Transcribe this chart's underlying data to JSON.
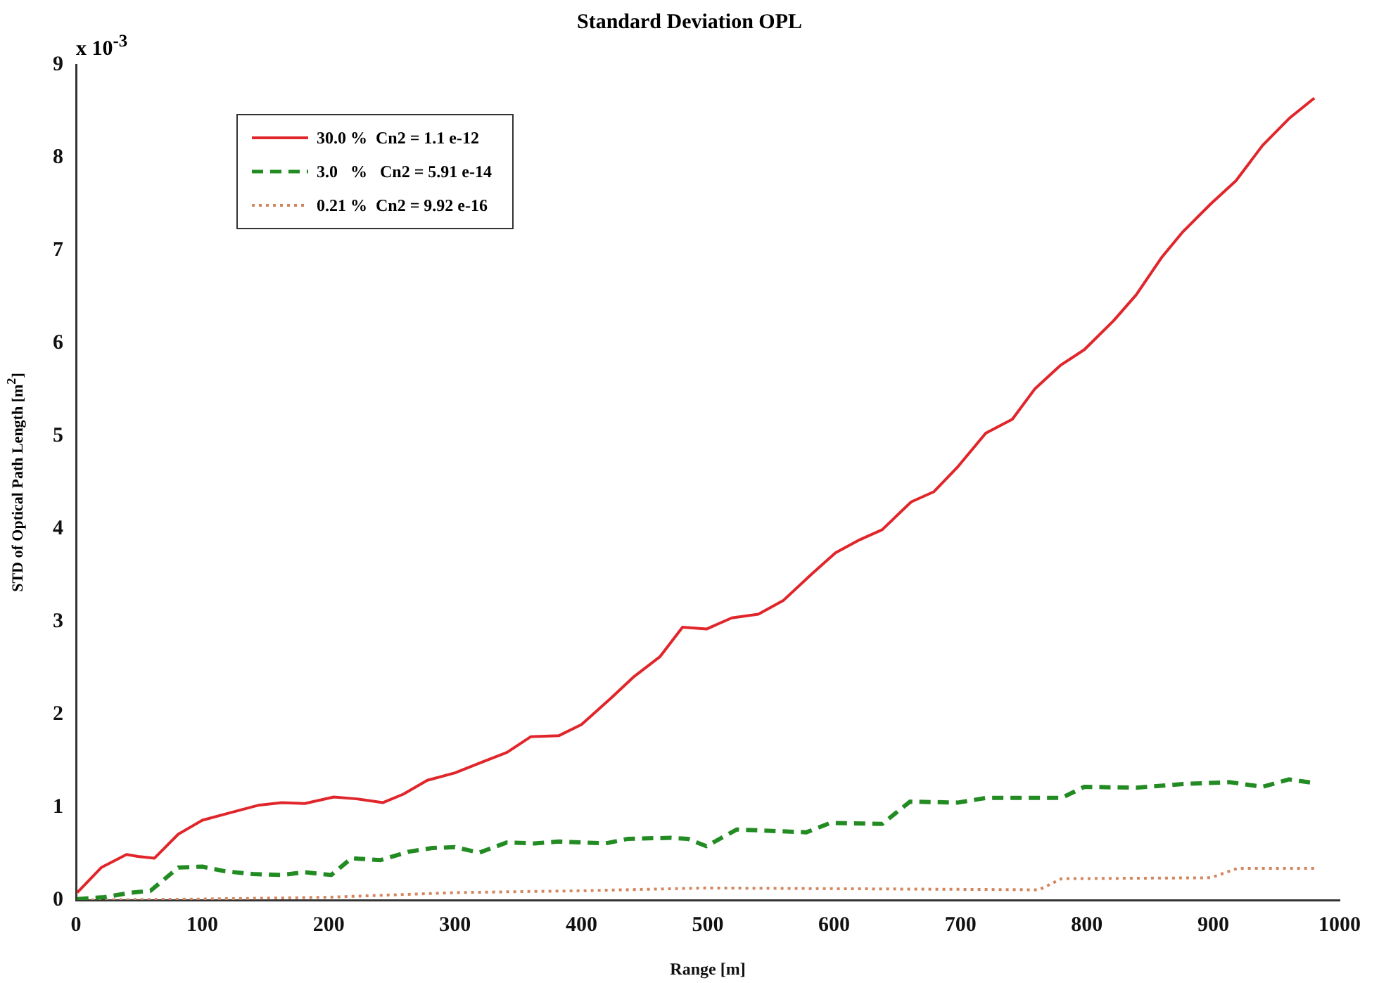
{
  "chart_data": {
    "type": "line",
    "title": "Standard Deviation OPL",
    "xlabel": "Range [m]",
    "ylabel": "STD of Optical Path Length [m$^{2}$]",
    "annotations": [
      "x 10$^{-3}$"
    ],
    "xlim": [
      0,
      1000
    ],
    "xticks": [
      0,
      100,
      200,
      300,
      400,
      500,
      600,
      700,
      800,
      900,
      1000
    ],
    "ylim": [
      0,
      9
    ],
    "yticks": [
      0,
      1,
      2,
      3,
      4,
      5,
      6,
      7,
      8,
      9
    ],
    "grid": false,
    "legend": "top left",
    "marker": "none",
    "series": [
      {
        "name": "30.0 %  Cn2 = 1.1 e-12",
        "color": "#e0262b",
        "line_style": "solid",
        "x": [
          1,
          20,
          40,
          49,
          62,
          81,
          100,
          122,
          144,
          163,
          181,
          204,
          222,
          243,
          259,
          278,
          300,
          322,
          341,
          360,
          382,
          400,
          423,
          441,
          462,
          480,
          499,
          519,
          540,
          560,
          582,
          601,
          620,
          638,
          661,
          679,
          698,
          720,
          741,
          759,
          779,
          798,
          821,
          839,
          859,
          876,
          898,
          918,
          939,
          960,
          980
        ],
        "values": [
          0.08,
          0.35,
          0.49,
          0.47,
          0.45,
          0.71,
          0.86,
          0.94,
          1.02,
          1.05,
          1.04,
          1.11,
          1.09,
          1.05,
          1.14,
          1.29,
          1.37,
          1.49,
          1.59,
          1.76,
          1.77,
          1.89,
          2.17,
          2.4,
          2.62,
          2.94,
          2.92,
          3.04,
          3.08,
          3.23,
          3.51,
          3.74,
          3.88,
          3.99,
          4.29,
          4.4,
          4.67,
          5.03,
          5.18,
          5.51,
          5.76,
          5.93,
          6.24,
          6.52,
          6.92,
          7.2,
          7.5,
          7.75,
          8.13,
          8.42,
          8.64
        ]
      },
      {
        "name": "3.0   %   Cn2 = 5.91 e-14",
        "color": "#228b22",
        "line_style": "dashed",
        "x": [
          1,
          22,
          44,
          59,
          81,
          100,
          118,
          140,
          163,
          181,
          202,
          218,
          241,
          263,
          282,
          300,
          319,
          341,
          363,
          382,
          419,
          437,
          471,
          484,
          499,
          523,
          578,
          597,
          638,
          660,
          698,
          720,
          780,
          798,
          839,
          876,
          913,
          939,
          960,
          980
        ],
        "values": [
          0.01,
          0.03,
          0.08,
          0.1,
          0.35,
          0.36,
          0.31,
          0.28,
          0.27,
          0.3,
          0.27,
          0.45,
          0.43,
          0.52,
          0.56,
          0.57,
          0.51,
          0.62,
          0.61,
          0.63,
          0.61,
          0.66,
          0.67,
          0.66,
          0.58,
          0.76,
          0.73,
          0.83,
          0.82,
          1.06,
          1.05,
          1.1,
          1.1,
          1.22,
          1.21,
          1.25,
          1.27,
          1.22,
          1.3,
          1.26
        ]
      },
      {
        "name": "0.21 %  Cn2 = 9.92 e-16",
        "color": "#d2865f",
        "line_style": "dotted",
        "x": [
          1,
          96,
          200,
          300,
          400,
          499,
          762,
          780,
          898,
          919,
          980
        ],
        "values": [
          0,
          0.01,
          0.03,
          0.08,
          0.1,
          0.13,
          0.11,
          0.23,
          0.24,
          0.34,
          0.34
        ]
      }
    ]
  }
}
